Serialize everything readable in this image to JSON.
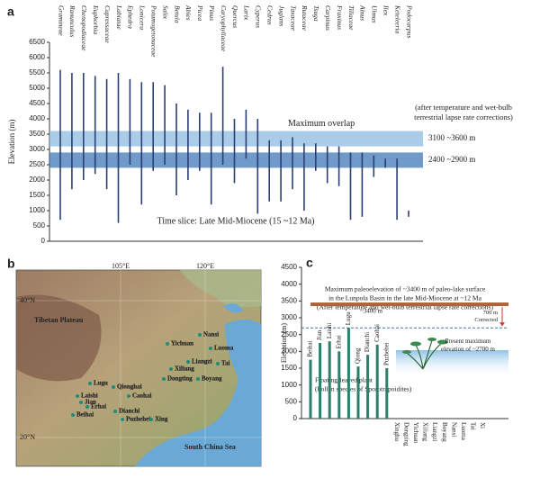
{
  "chart_data": [
    {
      "type": "range",
      "panel_label": "a",
      "ylabel": "Elevation (m)",
      "categories": [
        "Gramineae",
        "Ranunculus",
        "Chenopodiaceae",
        "Euphorbia",
        "Cupressaceae",
        "Labiatae",
        "Ephedra",
        "Lonicera",
        "Potamogetonaceae",
        "Salix",
        "Betula",
        "Abies",
        "Picea",
        "Pinus",
        "Caryophyllaceae",
        "Quercus",
        "Larix",
        "Cyperus",
        "Cedrus",
        "Juglans",
        "Taxaceae",
        "Rutaceae",
        "Tsuga",
        "Carpinus",
        "Fraxinus",
        "Tiliaceae",
        "Alnus",
        "Ulmus",
        "Ilex",
        "Keteleeria",
        "Podocarpus"
      ],
      "low": [
        700,
        1700,
        2000,
        2200,
        1700,
        600,
        2500,
        1200,
        2300,
        2500,
        1500,
        2000,
        2300,
        1200,
        2500,
        1900,
        2700,
        900,
        1300,
        1300,
        1700,
        1000,
        2300,
        1900,
        1800,
        700,
        800,
        2100,
        2400,
        700,
        800
      ],
      "high": [
        5600,
        5500,
        5500,
        5400,
        5300,
        5500,
        5300,
        5200,
        5200,
        5100,
        4500,
        4300,
        4200,
        4200,
        5700,
        4000,
        4300,
        4000,
        3300,
        3300,
        3400,
        3200,
        3200,
        3100,
        3100,
        2900,
        2900,
        2800,
        2700,
        2700,
        1000
      ],
      "color": "#2b3f73",
      "ylim": [
        0,
        6500
      ],
      "yticks": [
        0,
        500,
        1000,
        1500,
        2000,
        2500,
        3000,
        3500,
        4000,
        4500,
        5000,
        5500,
        6000,
        6500
      ],
      "bands": [
        {
          "label": "2400 ~2900 m",
          "range": [
            2400,
            2900
          ],
          "color": "#3f78b8",
          "label_color": "#222"
        },
        {
          "label": "3100 ~3600 m",
          "range": [
            3100,
            3600
          ],
          "color": "#8cbbe0",
          "label_color": "#c0392b"
        }
      ],
      "band_title": "Maximum overlap",
      "correction_note": [
        "(after temperature and wet-bulb",
        "terrestrial lapse rate corrections)"
      ],
      "time_slice": "Time slice: Late Mid-Miocene (15 ~12 Ma)"
    },
    {
      "type": "bar",
      "panel_label": "c",
      "ylabel": "Elevation (m)",
      "categories": [
        "Beihai",
        "Jian",
        "Laishi",
        "Erhai",
        "Lugu",
        "Qiong",
        "Dianchi",
        "Caohai",
        "Puzhehei",
        "Xinghu",
        "Dongting",
        "Yichuan",
        "Xiliang",
        "Liangzi",
        "Boyang",
        "Nansi",
        "Luoma",
        "Tai",
        "Xi"
      ],
      "values": [
        1750,
        2250,
        2300,
        2000,
        2700,
        1550,
        1900,
        2200,
        1500,
        0,
        0,
        0,
        0,
        0,
        0,
        0,
        0,
        0,
        0
      ],
      "color": "#2f7d6b",
      "ylim": [
        0,
        4500
      ],
      "yticks": [
        0,
        500,
        1000,
        1500,
        2000,
        2500,
        3000,
        3500,
        4000,
        4500
      ],
      "reference_lines": [
        {
          "value": 3400,
          "label": "~3400 m",
          "color": "#b0633a",
          "style": "solid"
        },
        {
          "value": 2700,
          "label": "Present maximum",
          "sublabel": "elevation of ~2700 m",
          "color": "#3f78b8",
          "style": "dashed"
        }
      ],
      "correction": {
        "label": "700 m",
        "sublabel": "Corrected"
      },
      "title_lines": [
        "Maximum paleoelevation of ~3400 m of paleo-lake surface",
        "in the Lunpola Basin in the late Mid-Miocene at ~12 Ma",
        "(After temperature and wet-bulb terrestrial lapse rate corrections)"
      ],
      "plant_note": [
        "Floating-leaved plant",
        "(Pollen species of Sporotrapoidites)"
      ]
    }
  ],
  "map": {
    "panel_label": "b",
    "graticule": [
      "105°E",
      "120°E",
      "40°N",
      "20°N"
    ],
    "regions": [
      "Tibetan Plateau",
      "South China Sea"
    ],
    "sites": [
      "Yichuan",
      "Nansi",
      "Luoma",
      "Liangzi",
      "Tai",
      "Xiliang",
      "Dongting",
      "Boyang",
      "Lugu",
      "Qionghai",
      "Laishi",
      "Jian",
      "Erhai",
      "Caohai",
      "Dianchi",
      "Beihai",
      "Puzhehei",
      "Xing"
    ]
  }
}
